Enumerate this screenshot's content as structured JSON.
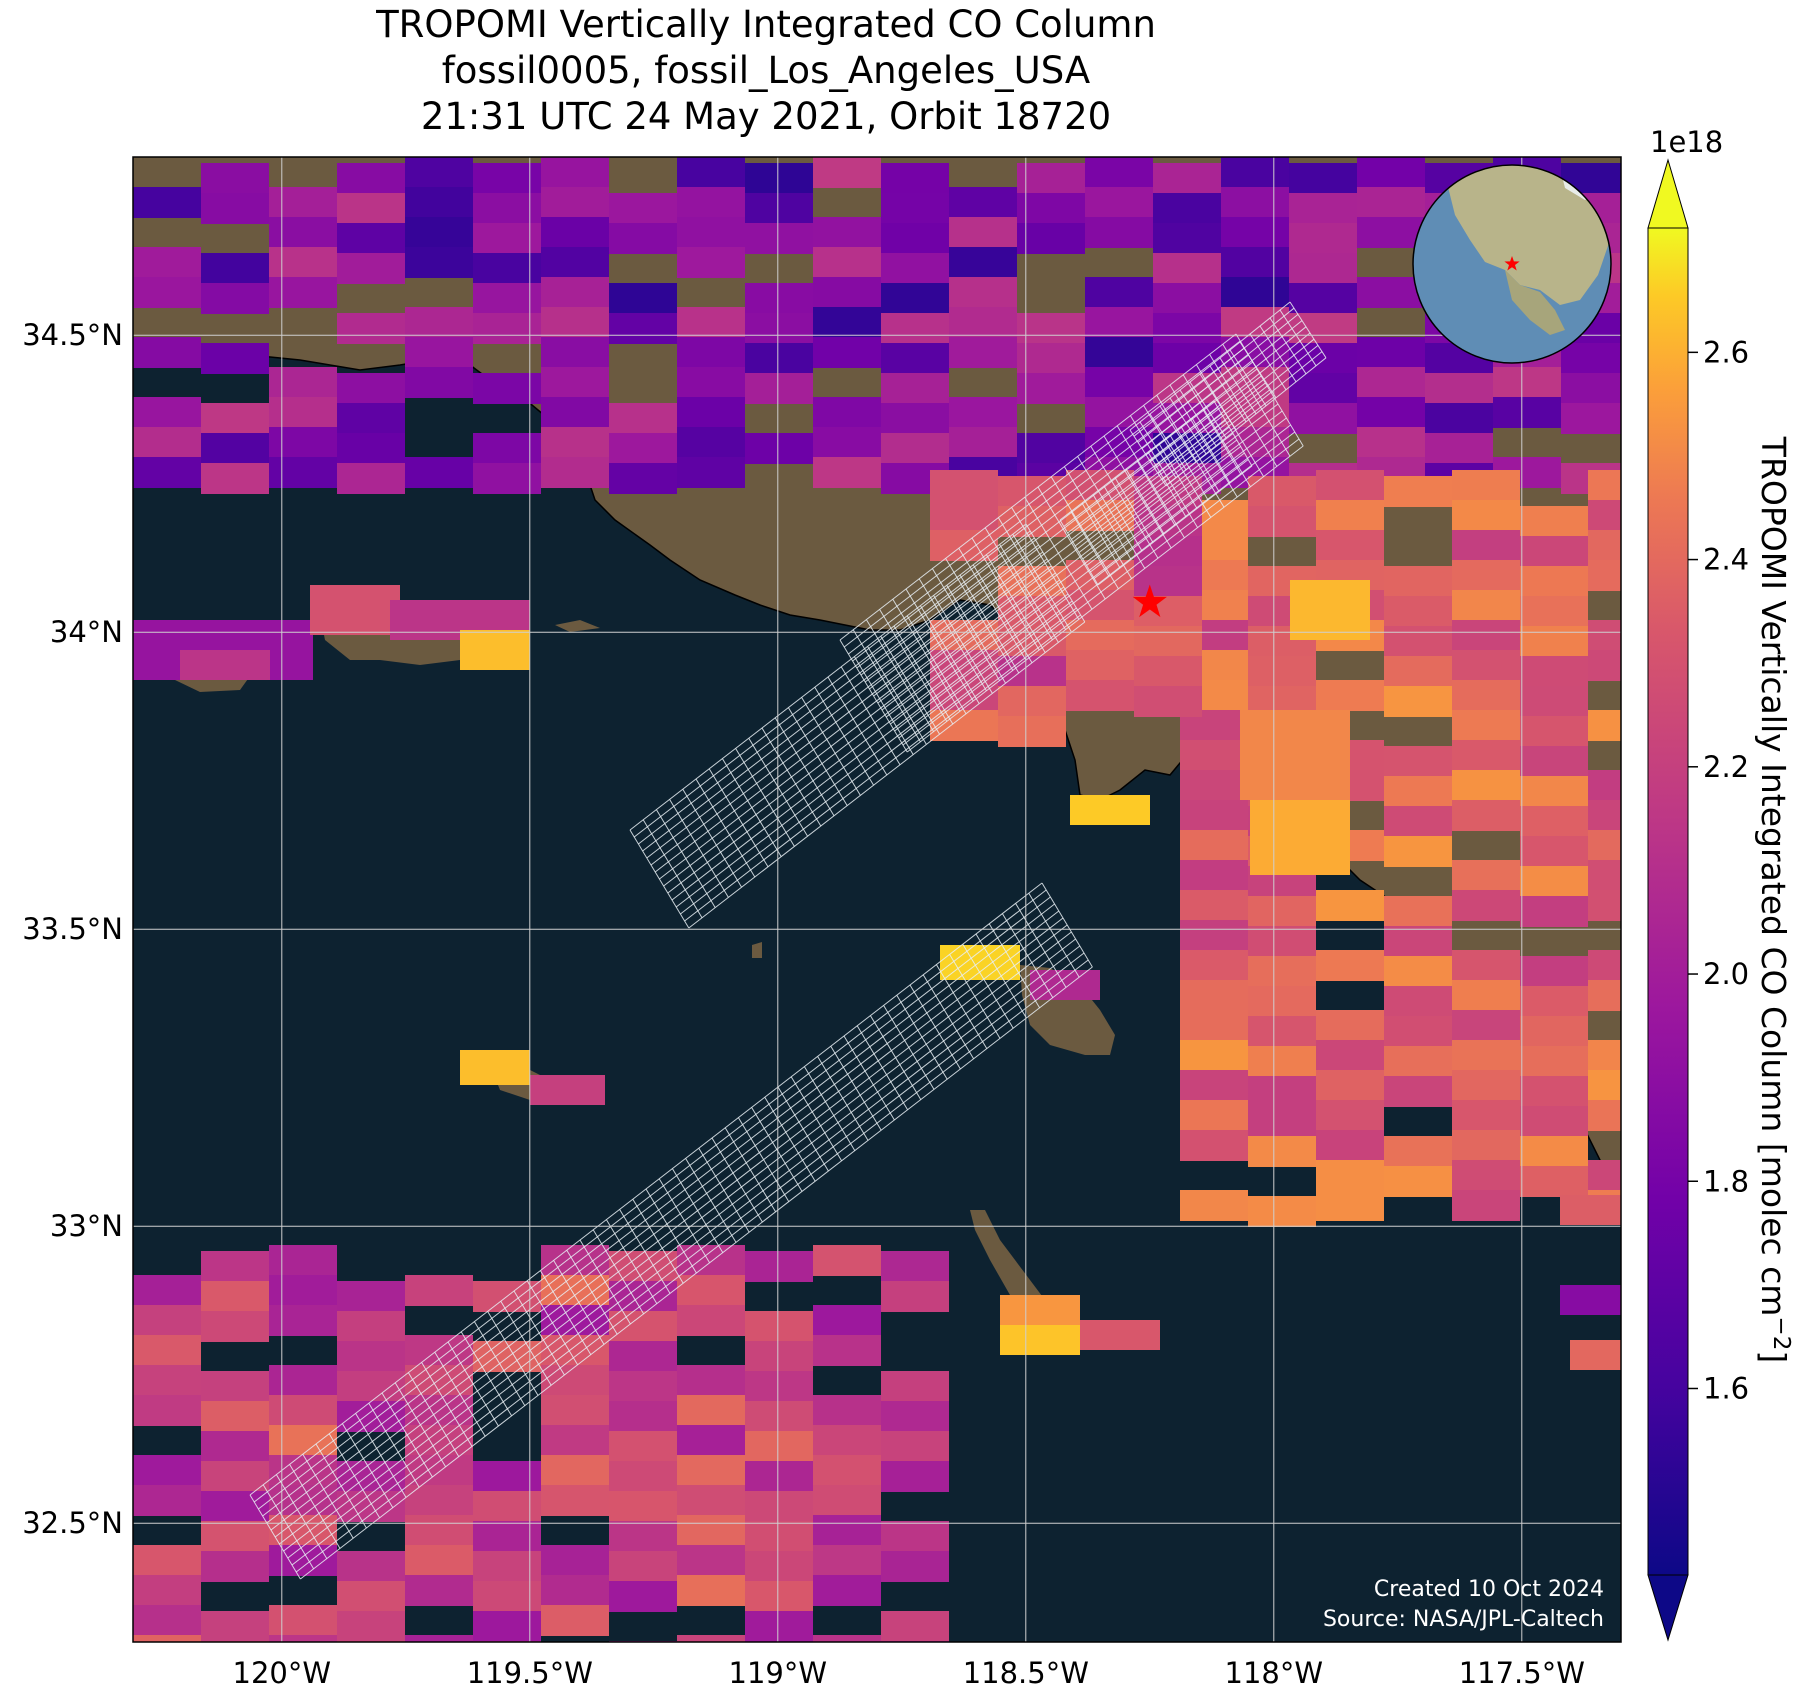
{
  "title": {
    "line1": "TROPOMI Vertically Integrated CO Column",
    "line2": "fossil0005, fossil_Los_Angeles_USA",
    "line3": "21:31 UTC 24 May 2021, Orbit 18720"
  },
  "map": {
    "lon_range": [
      -120.3,
      -117.3
    ],
    "lat_range": [
      32.3,
      34.8
    ],
    "lon_ticks": [
      {
        "value": -120.0,
        "label": "120°W"
      },
      {
        "value": -119.5,
        "label": "119.5°W"
      },
      {
        "value": -119.0,
        "label": "119°W"
      },
      {
        "value": -118.5,
        "label": "118.5°W"
      },
      {
        "value": -118.0,
        "label": "118°W"
      },
      {
        "value": -117.5,
        "label": "117.5°W"
      }
    ],
    "lat_ticks": [
      {
        "value": 34.5,
        "label": "34.5°N"
      },
      {
        "value": 34.0,
        "label": "34°N"
      },
      {
        "value": 33.5,
        "label": "33.5°N"
      },
      {
        "value": 33.0,
        "label": "33°N"
      },
      {
        "value": 32.5,
        "label": "32.5°N"
      }
    ],
    "target_marker": {
      "lon": -118.25,
      "lat": 34.05,
      "symbol": "star",
      "color": "#ff0000"
    },
    "ocean_color": "#0d2230",
    "land_color": "#6b5a40",
    "gridlines": true,
    "inset_globe": {
      "position": "top-right",
      "center_lon": -100,
      "center_lat": 35
    }
  },
  "colorbar": {
    "label": "TROPOMI Vertically Integrated CO Column [molec cm",
    "label_exp": "−2",
    "label_close": "]",
    "multiplier": "1e18",
    "range": [
      1.42,
      2.72
    ],
    "colormap": "plasma",
    "ticks": [
      {
        "value": 1.6,
        "label": "1.6"
      },
      {
        "value": 1.8,
        "label": "1.8"
      },
      {
        "value": 2.0,
        "label": "2.0"
      },
      {
        "value": 2.2,
        "label": "2.2"
      },
      {
        "value": 2.4,
        "label": "2.4"
      },
      {
        "value": 2.6,
        "label": "2.6"
      }
    ],
    "extend": "both"
  },
  "credit": {
    "line1": "Created 10 Oct 2024",
    "line2": "Source: NASA/JPL-Caltech"
  }
}
